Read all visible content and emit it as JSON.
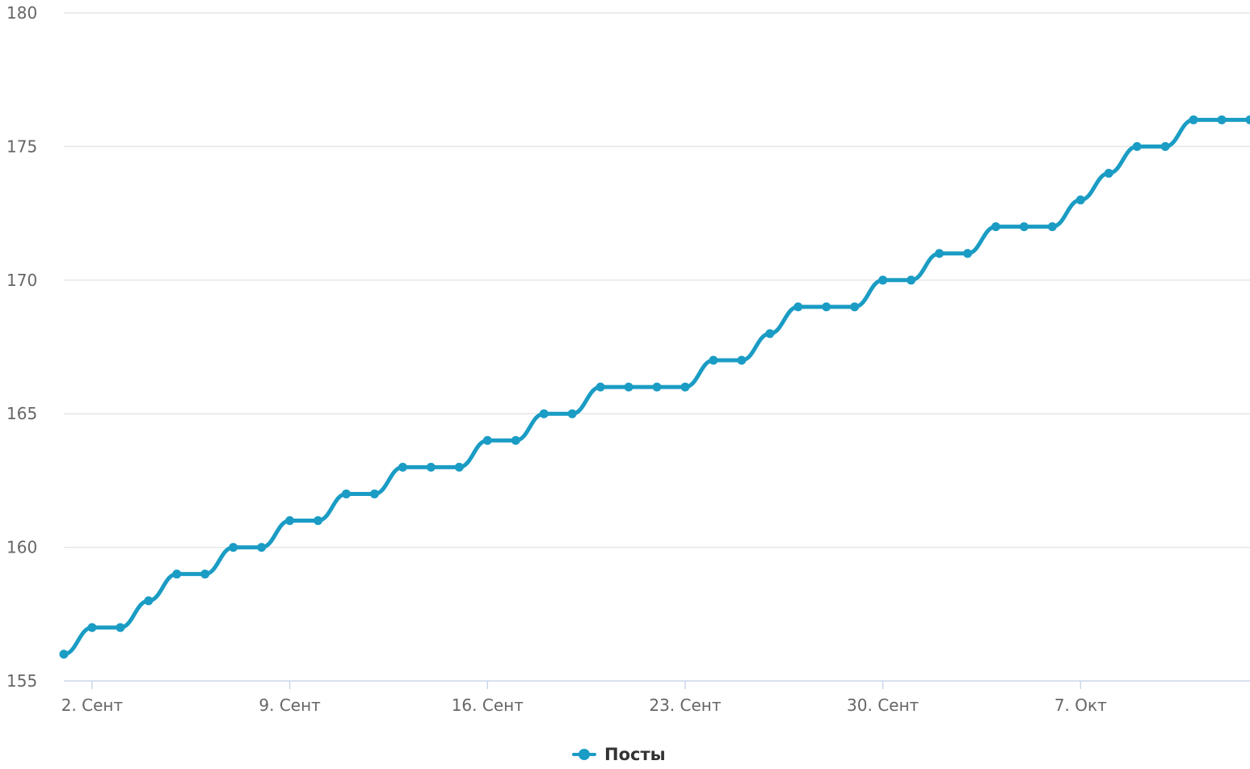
{
  "colors": {
    "series": "#1a9cc4",
    "grid": "#e6e6e6",
    "axis_line": "#ccd6eb",
    "text": "#666666",
    "legend_text": "#333333"
  },
  "chart_data": {
    "type": "line",
    "title": "",
    "xlabel": "",
    "ylabel": "",
    "ylim": [
      155,
      180
    ],
    "yticks": [
      180,
      175,
      170,
      165,
      160,
      155
    ],
    "xticks": [
      {
        "label": "2. Сент",
        "date": "2018-09-02"
      },
      {
        "label": "9. Сент",
        "date": "2018-09-09"
      },
      {
        "label": "16. Сент",
        "date": "2018-09-16"
      },
      {
        "label": "23. Сент",
        "date": "2018-09-23"
      },
      {
        "label": "30. Сент",
        "date": "2018-09-30"
      },
      {
        "label": "7. Окт",
        "date": "2018-10-07"
      }
    ],
    "grid": true,
    "legend": "bottom-center",
    "series": [
      {
        "name": "Посты",
        "x": [
          "2018-09-01",
          "2018-09-02",
          "2018-09-03",
          "2018-09-04",
          "2018-09-05",
          "2018-09-06",
          "2018-09-07",
          "2018-09-08",
          "2018-09-09",
          "2018-09-10",
          "2018-09-11",
          "2018-09-12",
          "2018-09-13",
          "2018-09-14",
          "2018-09-15",
          "2018-09-16",
          "2018-09-17",
          "2018-09-18",
          "2018-09-19",
          "2018-09-20",
          "2018-09-21",
          "2018-09-22",
          "2018-09-23",
          "2018-09-24",
          "2018-09-25",
          "2018-09-26",
          "2018-09-27",
          "2018-09-28",
          "2018-09-29",
          "2018-09-30",
          "2018-10-01",
          "2018-10-02",
          "2018-10-03",
          "2018-10-04",
          "2018-10-05",
          "2018-10-06",
          "2018-10-07",
          "2018-10-08",
          "2018-10-09",
          "2018-10-10",
          "2018-10-11",
          "2018-10-12",
          "2018-10-13"
        ],
        "values": [
          156,
          157,
          157,
          158,
          159,
          159,
          160,
          160,
          161,
          161,
          162,
          162,
          163,
          163,
          163,
          164,
          164,
          165,
          165,
          166,
          166,
          166,
          166,
          167,
          167,
          168,
          169,
          169,
          169,
          170,
          170,
          171,
          171,
          172,
          172,
          172,
          173,
          174,
          175,
          175,
          176,
          176,
          176
        ]
      }
    ]
  }
}
